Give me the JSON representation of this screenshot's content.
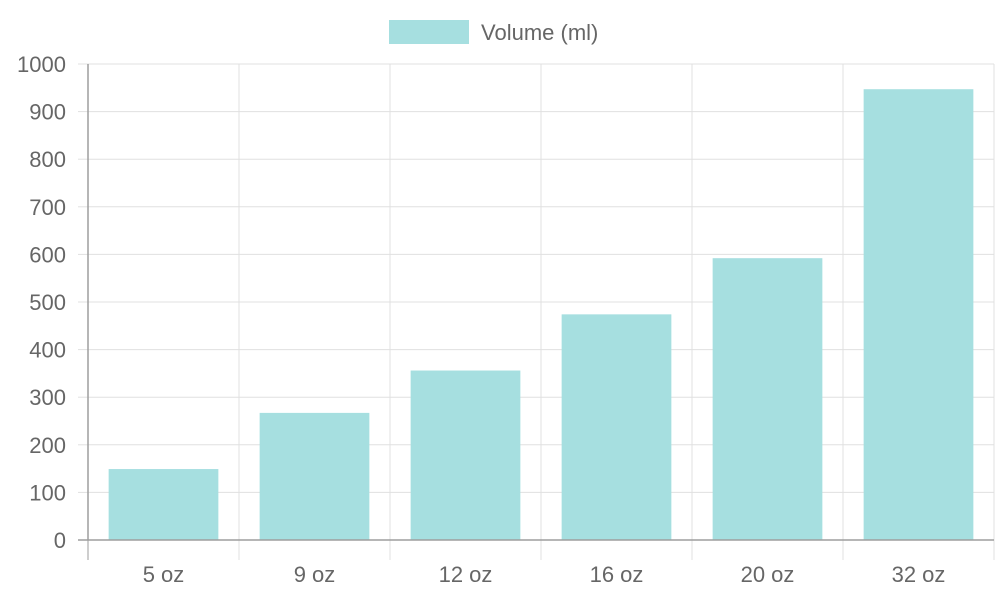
{
  "chart_data": {
    "type": "bar",
    "categories": [
      "5 oz",
      "9 oz",
      "12 oz",
      "16 oz",
      "20 oz",
      "32 oz"
    ],
    "series": [
      {
        "name": "Volume (ml)",
        "values": [
          148,
          266,
          355,
          473,
          591,
          946
        ]
      }
    ],
    "title": "",
    "xlabel": "",
    "ylabel": "",
    "ylim": [
      0,
      1000
    ],
    "yticks": [
      0,
      100,
      200,
      300,
      400,
      500,
      600,
      700,
      800,
      900,
      1000
    ],
    "grid": true,
    "legend_position": "top-center"
  },
  "colors": {
    "bar_fill": "#a6dfe0",
    "bar_stroke": "#a6dfe0",
    "grid": "#e0e0e0",
    "axis": "#9e9e9e",
    "text": "#666666"
  }
}
